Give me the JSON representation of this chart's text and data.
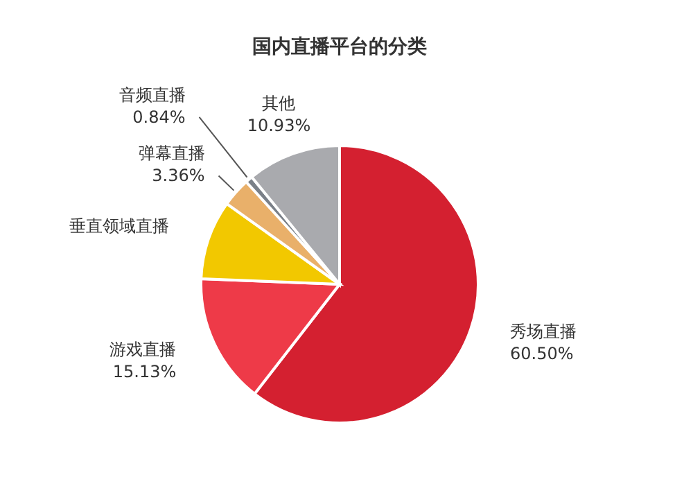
{
  "chart_data": {
    "type": "pie",
    "title": "国内直播平台的分类",
    "categories": [
      "秀场直播",
      "游戏直播",
      "垂直领域直播",
      "弹幕直播",
      "音频直播",
      "其他"
    ],
    "values": [
      60.5,
      15.13,
      9.24,
      3.36,
      0.84,
      10.93
    ],
    "value_labels": [
      "60.50%",
      "15.13%",
      null,
      "3.36%",
      "0.84%",
      "10.93%"
    ],
    "colors": [
      "#d42030",
      "#ee3a48",
      "#f2c800",
      "#e9b06a",
      "#7a8088",
      "#a9aaae"
    ]
  }
}
